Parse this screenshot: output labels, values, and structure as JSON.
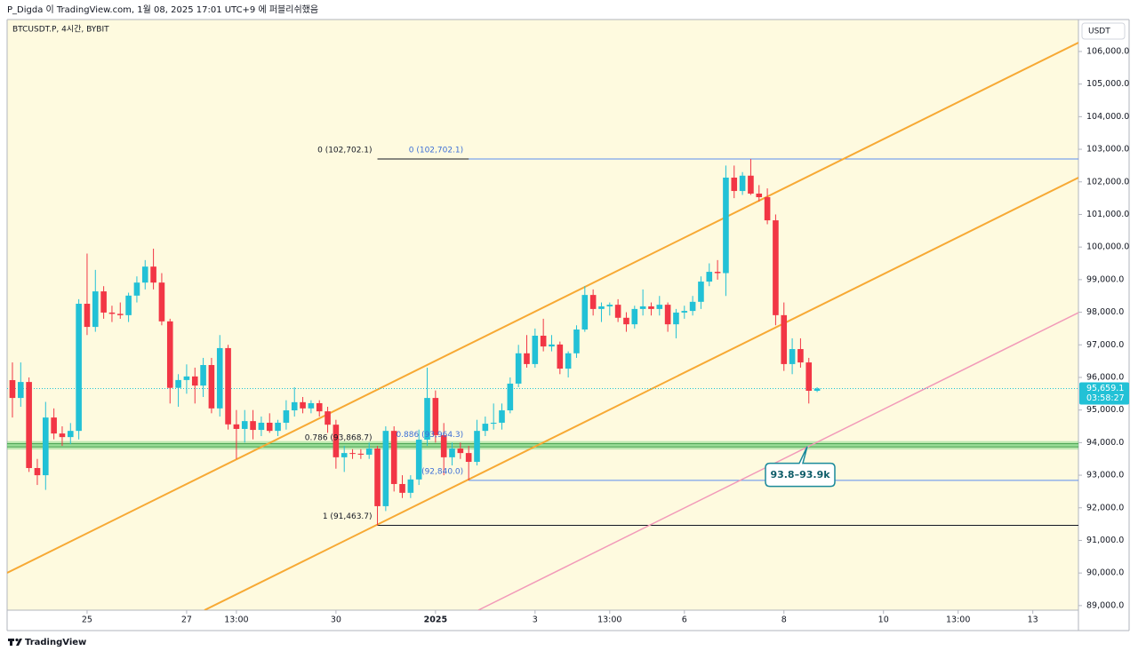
{
  "header": {
    "publisher": "P_Digda 이 TradingView.com, 1월 08, 2025 17:01 UTC+9 에 퍼블리쉬했음",
    "symbol": "BTCUSDT.P, 4시간, BYBIT",
    "currency": "USDT",
    "brand": "TradingView"
  },
  "chart_data": {
    "type": "candlestick",
    "up_color": "#22c1d6",
    "down_color": "#f23645",
    "background": "#fefadf",
    "open": [
      95917,
      95370,
      95860,
      93220,
      93000,
      94770,
      94280,
      94170,
      94360,
      98260,
      97550,
      98640,
      97990,
      97950,
      97910,
      98510,
      98910,
      99400,
      98910,
      97720,
      95680,
      95920,
      96030,
      95750,
      96380,
      95050,
      96900,
      94560,
      94420,
      94660,
      94390,
      94610,
      94360,
      94610,
      94990,
      95240,
      95050,
      95210,
      94960,
      94550,
      93550,
      93680,
      93660,
      93630,
      93820,
      92050,
      94360,
      92730,
      92460,
      92870,
      94090,
      95370,
      94230,
      93550,
      93820,
      93680,
      93410,
      94360,
      94580,
      94610,
      94990,
      95810,
      96740,
      96410,
      97280,
      96950,
      97010,
      96270,
      96740,
      97470,
      98530,
      98100,
      98180,
      98230,
      97830,
      97630,
      98100,
      98180,
      98100,
      98230,
      97630,
      97990,
      98040,
      98320,
      98940,
      99240,
      99200,
      102130,
      101720,
      102190,
      101640,
      101530,
      100820,
      97910,
      96410,
      96870,
      96460,
      95590
    ],
    "high": [
      96460,
      96460,
      96000,
      93500,
      95250,
      95050,
      94500,
      94600,
      98400,
      99800,
      99300,
      98800,
      98200,
      98300,
      98600,
      99100,
      99600,
      99950,
      99200,
      97800,
      96100,
      96400,
      96300,
      96600,
      96600,
      97300,
      97000,
      95000,
      95000,
      95000,
      94800,
      94900,
      94700,
      95300,
      95700,
      95400,
      95300,
      95300,
      95100,
      94700,
      93900,
      93800,
      93800,
      94000,
      93900,
      94500,
      94500,
      93000,
      93000,
      94400,
      96300,
      95600,
      94600,
      94000,
      94000,
      93900,
      94700,
      94800,
      95200,
      95200,
      96000,
      97000,
      97300,
      97500,
      97800,
      97300,
      97100,
      96800,
      97600,
      98800,
      98700,
      98300,
      98300,
      98400,
      98000,
      98200,
      98700,
      98300,
      98500,
      98300,
      98100,
      98200,
      98500,
      99100,
      99500,
      99600,
      102500,
      102500,
      102300,
      102702.1,
      101900,
      101800,
      101000,
      98300,
      97200,
      97200,
      96600,
      95700
    ],
    "low": [
      94770,
      95100,
      93100,
      92700,
      92550,
      94100,
      93900,
      93950,
      94100,
      97300,
      97400,
      97800,
      97700,
      97800,
      97700,
      98300,
      98700,
      98700,
      97600,
      95200,
      95100,
      95500,
      95200,
      95400,
      94900,
      94800,
      94400,
      93500,
      94000,
      94100,
      94200,
      94300,
      94200,
      94400,
      94800,
      94900,
      94900,
      94800,
      94300,
      93200,
      93100,
      93500,
      93500,
      93500,
      91463.7,
      91900,
      92500,
      92300,
      92300,
      92700,
      93900,
      94000,
      93000,
      93300,
      93500,
      92840,
      93300,
      94200,
      94400,
      94400,
      94900,
      95700,
      96300,
      96300,
      96800,
      96800,
      96100,
      96000,
      96600,
      97400,
      97900,
      97700,
      97900,
      97700,
      97400,
      97500,
      97900,
      97900,
      97900,
      97400,
      97200,
      97800,
      97900,
      98100,
      98800,
      99000,
      98500,
      101500,
      101600,
      101600,
      101400,
      100700,
      97600,
      96200,
      96100,
      96300,
      95200,
      95550
    ],
    "close": [
      95370,
      95860,
      93220,
      93000,
      94770,
      94280,
      94170,
      94360,
      98260,
      97550,
      98640,
      97990,
      97950,
      97910,
      98510,
      98910,
      99400,
      98910,
      97720,
      95680,
      95920,
      96030,
      95750,
      96380,
      95050,
      96900,
      94560,
      94420,
      94660,
      94390,
      94610,
      94360,
      94610,
      94990,
      95240,
      95050,
      95210,
      94960,
      94550,
      93550,
      93680,
      93660,
      93630,
      93820,
      92050,
      94360,
      92730,
      92460,
      92870,
      94090,
      95370,
      94230,
      93550,
      93820,
      93680,
      93410,
      94360,
      94580,
      94610,
      94990,
      95810,
      96740,
      96410,
      97280,
      96950,
      97010,
      96270,
      96740,
      97470,
      98530,
      98100,
      98180,
      98230,
      97830,
      97630,
      98100,
      98180,
      98100,
      98230,
      97630,
      97990,
      98040,
      98320,
      98940,
      99240,
      99200,
      102130,
      101720,
      102190,
      101640,
      101530,
      100820,
      97910,
      96410,
      96870,
      96460,
      95590,
      95659.1
    ],
    "xlim": [
      -0.64,
      128.5
    ],
    "ylim": [
      88860,
      106980
    ],
    "xticks": [
      {
        "value": 9,
        "label": "25"
      },
      {
        "value": 21,
        "label": "27"
      },
      {
        "value": 27,
        "label": "13:00"
      },
      {
        "value": 39,
        "label": "30"
      },
      {
        "value": 51,
        "label": "2025"
      },
      {
        "value": 63,
        "label": "3"
      },
      {
        "value": 72,
        "label": "13:00"
      },
      {
        "value": 81,
        "label": "6"
      },
      {
        "value": 93,
        "label": "8"
      },
      {
        "value": 105,
        "label": "10"
      },
      {
        "value": 114,
        "label": "13:00"
      },
      {
        "value": 123,
        "label": "13"
      }
    ],
    "yticks": [
      {
        "value": 89000,
        "label": "89,000.0"
      },
      {
        "value": 90000,
        "label": "90,000.0"
      },
      {
        "value": 91000,
        "label": "91,000.0"
      },
      {
        "value": 92000,
        "label": "92,000.0"
      },
      {
        "value": 93000,
        "label": "93,000.0"
      },
      {
        "value": 94000,
        "label": "94,000.0"
      },
      {
        "value": 95000,
        "label": "95,000.0"
      },
      {
        "value": 96000,
        "label": "96,000.0"
      },
      {
        "value": 97000,
        "label": "97,000.0"
      },
      {
        "value": 98000,
        "label": "98,000.0"
      },
      {
        "value": 99000,
        "label": "99,000.0"
      },
      {
        "value": 100000,
        "label": "100,000.0"
      },
      {
        "value": 101000,
        "label": "101,000.0"
      },
      {
        "value": 102000,
        "label": "102,000.0"
      },
      {
        "value": 103000,
        "label": "103,000.0"
      },
      {
        "value": 104000,
        "label": "104,000.0"
      },
      {
        "value": 105000,
        "label": "105,000.0"
      },
      {
        "value": 106000,
        "label": "106,000.0"
      }
    ],
    "last_price": {
      "value": 95659.1,
      "label": "95,659.1"
    },
    "countdown": "03:58:27",
    "trendlines": [
      {
        "color": "#f7a934",
        "points": [
          [
            -0.64,
            90004
          ],
          [
            128.5,
            106272
          ]
        ]
      },
      {
        "color": "#f7a934",
        "points": [
          [
            23.15,
            88860
          ],
          [
            128.5,
            102130
          ]
        ]
      },
      {
        "color": "#f29ab9",
        "points": [
          [
            56.16,
            88860
          ],
          [
            128.5,
            97988
          ]
        ]
      }
    ],
    "fibs": [
      {
        "start": 44,
        "label_color": "#131722",
        "levels": [
          {
            "label": "0 (102,702.1)",
            "value": 102702.1,
            "color": "#131722"
          },
          {
            "label": "0.786 (93,868.7)",
            "value": 93868.7,
            "color": "#3f9e4a"
          },
          {
            "label": "1 (91,463.7)",
            "value": 91463.7,
            "color": "#131722"
          }
        ]
      },
      {
        "start": 55,
        "label_color": "#3d6fd6",
        "levels": [
          {
            "label": "0 (102,702.1)",
            "value": 102702.1,
            "color": "#5b8def"
          },
          {
            "label": "0.886 (93,964.3)",
            "value": 93964.3,
            "color": "#3f9e4a"
          },
          {
            "label": "(92,840.0)",
            "value": 92840,
            "color": "#5b8def"
          }
        ]
      }
    ],
    "callout": "93.8–93.9k"
  }
}
